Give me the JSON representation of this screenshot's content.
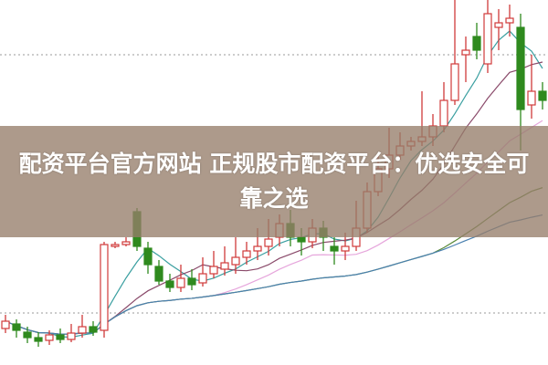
{
  "banner": {
    "title": "配资平台官方网站 正规股市配资平台：优选安全可靠之选"
  },
  "chart_data": {
    "type": "candlestick",
    "title": "",
    "grid": "dotted horizontal",
    "colors": {
      "up": "#d03a3a",
      "down": "#2f8a1e",
      "ma": [
        "#3a9fa0",
        "#8a4a6a",
        "#e6a6dc",
        "#5a8a3a",
        "#4a80b0"
      ]
    },
    "moving_averages": [
      5,
      10,
      20,
      40,
      60
    ],
    "candles": [
      [
        40,
        48,
        55,
        35
      ],
      [
        45,
        38,
        50,
        30
      ],
      [
        36,
        30,
        42,
        24
      ],
      [
        30,
        26,
        36,
        20
      ],
      [
        27,
        33,
        38,
        22
      ],
      [
        33,
        28,
        40,
        24
      ],
      [
        28,
        35,
        45,
        25
      ],
      [
        35,
        42,
        55,
        30
      ],
      [
        42,
        36,
        48,
        32
      ],
      [
        38,
        132,
        135,
        30
      ],
      [
        130,
        132,
        135,
        128
      ],
      [
        132,
        135,
        140,
        130
      ],
      [
        168,
        130,
        172,
        125
      ],
      [
        128,
        110,
        135,
        100
      ],
      [
        108,
        92,
        115,
        88
      ],
      [
        92,
        85,
        100,
        80
      ],
      [
        85,
        95,
        110,
        80
      ],
      [
        95,
        88,
        105,
        82
      ],
      [
        90,
        100,
        118,
        86
      ],
      [
        100,
        108,
        125,
        95
      ],
      [
        105,
        112,
        130,
        98
      ],
      [
        110,
        118,
        140,
        100
      ],
      [
        118,
        125,
        135,
        110
      ],
      [
        125,
        130,
        150,
        115
      ],
      [
        130,
        138,
        160,
        120
      ],
      [
        140,
        155,
        165,
        130
      ],
      [
        155,
        140,
        170,
        130
      ],
      [
        140,
        135,
        150,
        120
      ],
      [
        135,
        150,
        160,
        128
      ],
      [
        150,
        140,
        158,
        125
      ],
      [
        130,
        125,
        140,
        110
      ],
      [
        125,
        130,
        145,
        115
      ],
      [
        130,
        150,
        180,
        125
      ],
      [
        150,
        190,
        200,
        145
      ],
      [
        190,
        215,
        230,
        185
      ],
      [
        215,
        230,
        260,
        205
      ],
      [
        230,
        240,
        255,
        225
      ],
      [
        240,
        245,
        250,
        235
      ],
      [
        245,
        250,
        300,
        240
      ],
      [
        250,
        262,
        275,
        240
      ],
      [
        262,
        290,
        310,
        255
      ],
      [
        290,
        330,
        400,
        285
      ],
      [
        340,
        345,
        360,
        310
      ],
      [
        360,
        345,
        375,
        335
      ],
      [
        330,
        385,
        400,
        320
      ],
      [
        370,
        375,
        390,
        345
      ],
      [
        375,
        380,
        395,
        360
      ],
      [
        370,
        280,
        385,
        235
      ],
      [
        285,
        300,
        340,
        270
      ],
      [
        300,
        290,
        310,
        280
      ]
    ]
  }
}
